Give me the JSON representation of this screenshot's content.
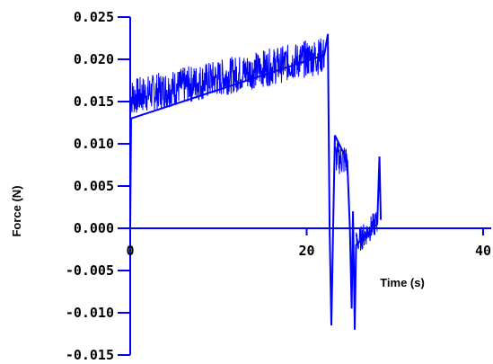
{
  "chart_data": {
    "type": "line",
    "title": "",
    "xlabel": "Time (s)",
    "ylabel": "Force (N)",
    "xlim": [
      0,
      40
    ],
    "ylim": [
      -0.015,
      0.025
    ],
    "x_ticks": [
      0,
      20,
      40
    ],
    "x_tick_labels": [
      "0",
      "20",
      "40"
    ],
    "y_ticks": [
      0.025,
      0.02,
      0.015,
      0.01,
      0.005,
      0.0,
      -0.005,
      -0.01,
      -0.015
    ],
    "y_tick_labels": [
      "0.025",
      "0.020",
      "0.015",
      "0.010",
      "0.005",
      "0.000",
      "-0.005",
      "-0.010",
      "-0.015"
    ],
    "grid": false,
    "legend": "none",
    "colors": {
      "series": "#0000ff",
      "axes": "#0000ff",
      "text": "#000000"
    },
    "series": [
      {
        "segments": [
          {
            "x_range": [
              0,
              22.0
            ],
            "y_start": 0.0155,
            "y_end": 0.0205,
            "noise_amplitude": 0.0022
          },
          {
            "x_range": [
              23.2,
              24.6
            ],
            "y_start": 0.0085,
            "y_end": 0.008,
            "noise_amplitude": 0.002
          },
          {
            "x_range": [
              25.6,
              28.0
            ],
            "y_start": -0.0018,
            "y_end": 0.0008,
            "noise_amplitude": 0.0015
          }
        ],
        "points": [
          [
            0,
            0
          ],
          [
            0.1,
            0.013
          ],
          [
            22.0,
            0.0205
          ],
          [
            22.4,
            0.023
          ],
          [
            22.6,
            0.0
          ],
          [
            22.8,
            -0.0115
          ],
          [
            23.0,
            0.0
          ],
          [
            23.2,
            0.011
          ],
          [
            24.6,
            0.008
          ],
          [
            24.9,
            0.0
          ],
          [
            25.1,
            -0.0095
          ],
          [
            25.25,
            0.002
          ],
          [
            25.45,
            -0.012
          ],
          [
            25.6,
            -0.002
          ],
          [
            28.0,
            0.0005
          ],
          [
            28.25,
            0.0085
          ],
          [
            28.4,
            0.001
          ]
        ]
      }
    ]
  }
}
